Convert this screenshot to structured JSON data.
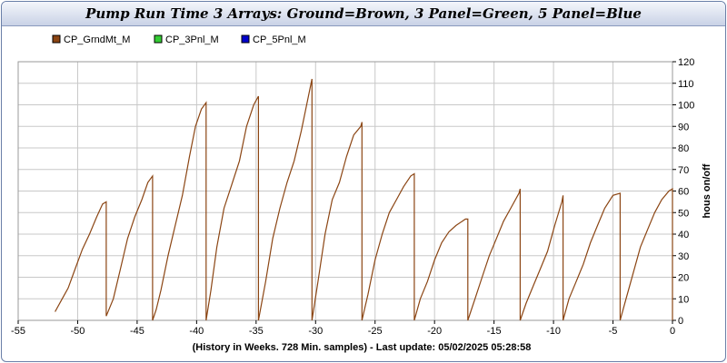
{
  "chart_data": {
    "type": "line",
    "title": "Pump Run Time 3 Arrays: Ground=Brown, 3 Panel=Green, 5 Panel=Blue",
    "xlabel": "(History in Weeks. 728 Min. samples) - Last update: 05/02/2025 05:28:58",
    "ylabel": "hous on/off",
    "xlim": [
      -55,
      0
    ],
    "ylim": [
      0,
      120
    ],
    "x_ticks": [
      -55,
      -50,
      -45,
      -40,
      -35,
      -30,
      -25,
      -20,
      -15,
      -10,
      -5,
      0
    ],
    "y_ticks": [
      0,
      10,
      20,
      30,
      40,
      50,
      60,
      70,
      80,
      90,
      100,
      110,
      120
    ],
    "grid": true,
    "legend_position": "top-left",
    "series": [
      {
        "name": "CP_GrndMt_M",
        "color": "#8b4513",
        "x": [
          -51.9,
          -51.3,
          -50.8,
          -50.2,
          -49.6,
          -49.0,
          -48.4,
          -47.9,
          -47.6,
          -47.6,
          -47.0,
          -46.4,
          -45.8,
          -45.2,
          -44.6,
          -44.1,
          -43.7,
          -43.7,
          -43.4,
          -43.0,
          -42.4,
          -41.8,
          -41.2,
          -40.6,
          -40.1,
          -39.6,
          -39.2,
          -39.2,
          -38.8,
          -38.3,
          -37.7,
          -37.1,
          -36.4,
          -35.8,
          -35.2,
          -34.8,
          -34.8,
          -34.2,
          -33.6,
          -33.0,
          -32.4,
          -31.8,
          -31.2,
          -30.6,
          -30.3,
          -30.3,
          -29.8,
          -29.2,
          -28.6,
          -28.0,
          -27.4,
          -26.8,
          -26.2,
          -26.1,
          -26.1,
          -25.6,
          -25.0,
          -24.4,
          -23.8,
          -23.2,
          -22.6,
          -22.0,
          -21.7,
          -21.7,
          -21.2,
          -20.6,
          -20.0,
          -19.4,
          -18.8,
          -18.2,
          -17.4,
          -17.2,
          -17.2,
          -16.6,
          -16.0,
          -15.4,
          -14.8,
          -14.2,
          -13.6,
          -12.9,
          -12.8,
          -12.8,
          -12.3,
          -11.7,
          -11.1,
          -10.5,
          -9.9,
          -9.3,
          -9.2,
          -9.2,
          -8.7,
          -8.1,
          -7.5,
          -6.9,
          -6.3,
          -5.7,
          -5.0,
          -4.4,
          -4.4,
          -3.9,
          -3.3,
          -2.7,
          -2.1,
          -1.5,
          -0.9,
          -0.3,
          0.0,
          0.0
        ],
        "values": [
          4,
          10,
          15,
          24,
          33,
          40,
          48,
          54,
          55,
          2,
          10,
          24,
          38,
          48,
          56,
          64,
          67,
          0,
          5,
          14,
          30,
          44,
          58,
          76,
          90,
          98,
          101,
          0,
          14,
          34,
          52,
          62,
          74,
          90,
          100,
          104,
          0,
          18,
          38,
          52,
          64,
          74,
          88,
          104,
          112,
          0,
          18,
          40,
          56,
          64,
          76,
          86,
          90,
          92,
          0,
          12,
          28,
          40,
          50,
          56,
          62,
          67,
          68,
          0,
          10,
          18,
          28,
          36,
          41,
          44,
          47,
          47,
          0,
          10,
          20,
          30,
          38,
          46,
          52,
          59,
          61,
          0,
          8,
          16,
          24,
          32,
          44,
          55,
          58,
          0,
          10,
          18,
          26,
          36,
          44,
          52,
          58,
          59,
          0,
          10,
          22,
          34,
          42,
          50,
          56,
          60,
          61,
          0
        ]
      },
      {
        "name": "CP_3Pnl_M",
        "color": "#33cc33",
        "x": [],
        "values": []
      },
      {
        "name": "CP_5Pnl_M",
        "color": "#0000cc",
        "x": [],
        "values": []
      }
    ]
  }
}
